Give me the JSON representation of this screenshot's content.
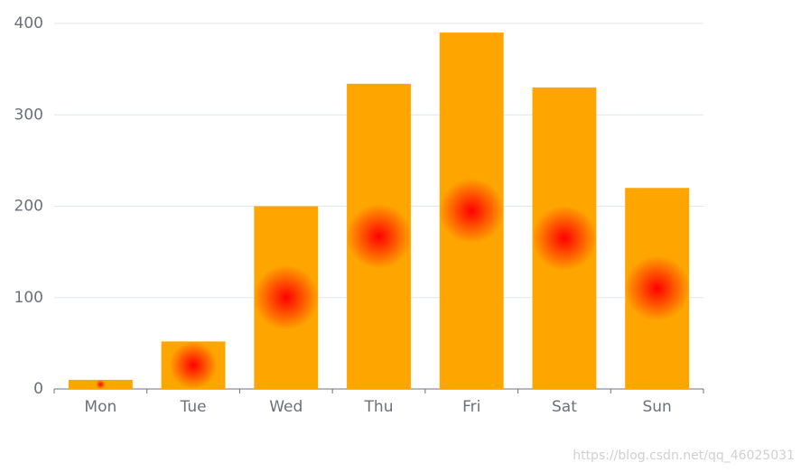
{
  "chart_data": {
    "type": "bar",
    "categories": [
      "Mon",
      "Tue",
      "Wed",
      "Thu",
      "Fri",
      "Sat",
      "Sun"
    ],
    "values": [
      10,
      52,
      200,
      334,
      390,
      330,
      220
    ],
    "color": "#ffa500",
    "glow_color": "#ff0000",
    "ylim": [
      0,
      400
    ],
    "yticks": [
      0,
      100,
      200,
      300,
      400
    ],
    "grid": true
  },
  "watermark": "https://blog.csdn.net/qq_46025031"
}
